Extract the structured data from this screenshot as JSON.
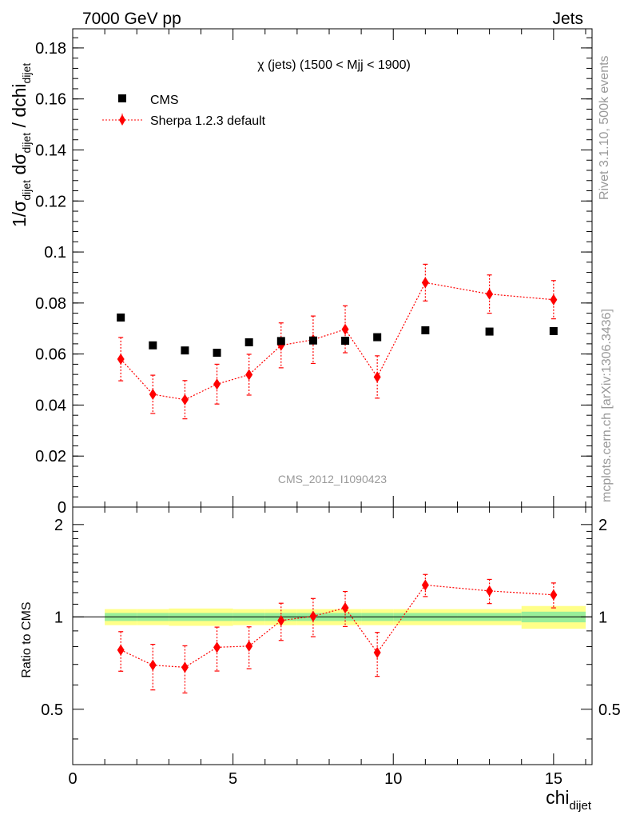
{
  "header": {
    "left": "7000 GeV pp",
    "right": "Jets"
  },
  "side_labels": {
    "top": "Rivet 3.1.10,  500k events",
    "bottom": "mcplots.cern.ch [arXiv:1306.3436]"
  },
  "chart_data": [
    {
      "type": "scatter",
      "panel": "main",
      "title": "χ (jets) (1500 < Mjj < 1900)",
      "watermark": "CMS_2012_I1090423",
      "ylabel": "1/σ_dijet dσ_dijet / dchi_dijet",
      "xlim": [
        0,
        16.2
      ],
      "ylim": [
        0,
        0.1875
      ],
      "y_ticks": [
        "0",
        "0.02",
        "0.04",
        "0.06",
        "0.08",
        "0.1",
        "0.12",
        "0.14",
        "0.16",
        "0.18"
      ],
      "legend_position": "top-left",
      "series": [
        {
          "name": "CMS",
          "color": "#000000",
          "marker": "square",
          "x": [
            1.5,
            2.5,
            3.5,
            4.5,
            5.5,
            6.5,
            7.5,
            8.5,
            9.5,
            11,
            13,
            15
          ],
          "y": [
            0.0743,
            0.0634,
            0.0614,
            0.0605,
            0.0646,
            0.0651,
            0.0653,
            0.0652,
            0.0666,
            0.0693,
            0.0688,
            0.069
          ]
        },
        {
          "name": "Sherpa 1.2.3 default",
          "color": "#ff0000",
          "marker": "diamond",
          "line": "dotted",
          "x": [
            1.5,
            2.5,
            3.5,
            4.5,
            5.5,
            6.5,
            7.5,
            8.5,
            9.5,
            11,
            13,
            15
          ],
          "y": [
            0.058,
            0.0442,
            0.0421,
            0.0482,
            0.0519,
            0.0634,
            0.0656,
            0.0697,
            0.051,
            0.088,
            0.0835,
            0.0813
          ],
          "err": [
            0.0085,
            0.0075,
            0.0075,
            0.0078,
            0.008,
            0.0088,
            0.0093,
            0.0092,
            0.0083,
            0.0072,
            0.0075,
            0.0075
          ]
        }
      ]
    },
    {
      "type": "scatter",
      "panel": "ratio",
      "xlabel": "chi_dijet",
      "ylabel": "Ratio to CMS",
      "xlim": [
        0,
        16.2
      ],
      "ylim": [
        0.33,
        2.28
      ],
      "x_ticks": [
        "0",
        "5",
        "10",
        "15"
      ],
      "y_ticks": [
        "0.5",
        "1",
        "2"
      ],
      "reference_line": 1,
      "band_colors": {
        "inner": "#99ee99",
        "outer": "#ffff88"
      },
      "band": [
        {
          "x0": 1,
          "x1": 2,
          "inner": 0.03,
          "outer": 0.06
        },
        {
          "x0": 2,
          "x1": 3,
          "inner": 0.03,
          "outer": 0.06
        },
        {
          "x0": 3,
          "x1": 4,
          "inner": 0.03,
          "outer": 0.065
        },
        {
          "x0": 4,
          "x1": 5,
          "inner": 0.03,
          "outer": 0.065
        },
        {
          "x0": 5,
          "x1": 6,
          "inner": 0.03,
          "outer": 0.06
        },
        {
          "x0": 6,
          "x1": 7,
          "inner": 0.03,
          "outer": 0.06
        },
        {
          "x0": 7,
          "x1": 8,
          "inner": 0.03,
          "outer": 0.06
        },
        {
          "x0": 8,
          "x1": 9,
          "inner": 0.03,
          "outer": 0.06
        },
        {
          "x0": 9,
          "x1": 10,
          "inner": 0.03,
          "outer": 0.06
        },
        {
          "x0": 10,
          "x1": 12,
          "inner": 0.03,
          "outer": 0.06
        },
        {
          "x0": 12,
          "x1": 14,
          "inner": 0.03,
          "outer": 0.06
        },
        {
          "x0": 14,
          "x1": 16,
          "inner": 0.04,
          "outer": 0.085
        }
      ],
      "series": [
        {
          "name": "Sherpa 1.2.3 default",
          "color": "#ff0000",
          "marker": "diamond",
          "line": "dotted",
          "x": [
            1.5,
            2.5,
            3.5,
            4.5,
            5.5,
            6.5,
            7.5,
            8.5,
            9.5,
            11,
            13,
            15
          ],
          "y": [
            0.78,
            0.696,
            0.685,
            0.796,
            0.803,
            0.973,
            1.005,
            1.07,
            0.765,
            1.27,
            1.215,
            1.18
          ],
          "err": [
            0.115,
            0.118,
            0.12,
            0.13,
            0.125,
            0.135,
            0.143,
            0.14,
            0.125,
            0.105,
            0.11,
            0.11
          ]
        }
      ]
    }
  ]
}
